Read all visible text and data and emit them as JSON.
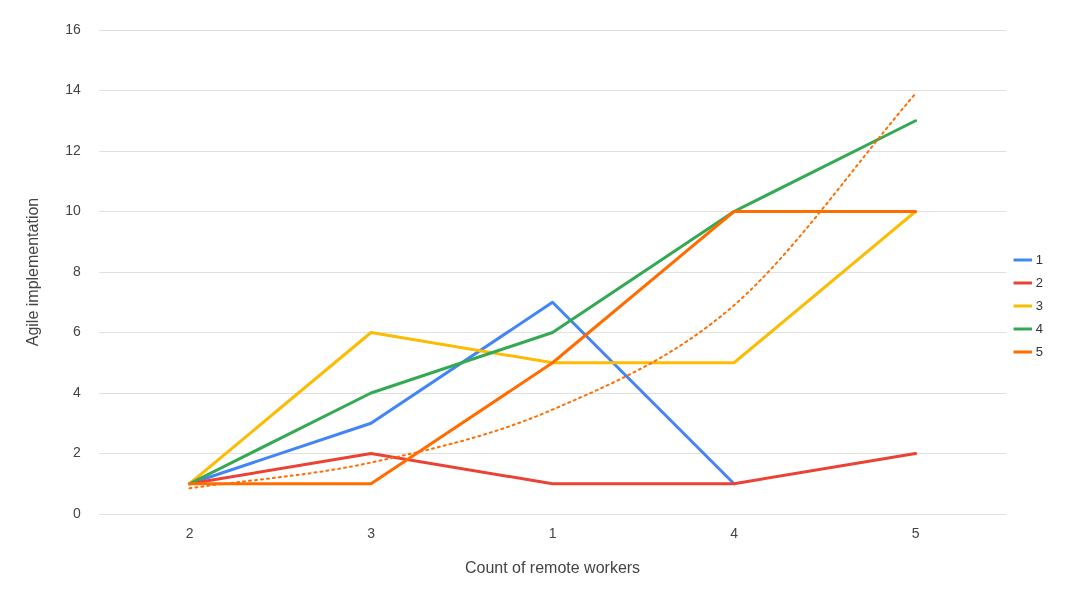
{
  "chart_data": {
    "type": "line",
    "xlabel": "Count of remote workers",
    "ylabel": "Agile implementation",
    "categories": [
      "2",
      "3",
      "1",
      "4",
      "5"
    ],
    "series": [
      {
        "name": "1",
        "color": "#4285f4",
        "values": [
          1,
          3,
          7,
          1,
          null
        ]
      },
      {
        "name": "2",
        "color": "#ea4335",
        "values": [
          1,
          2,
          1,
          1,
          2
        ]
      },
      {
        "name": "3",
        "color": "#fbbc04",
        "values": [
          1,
          6,
          5,
          5,
          10
        ]
      },
      {
        "name": "4",
        "color": "#34a853",
        "values": [
          1,
          4,
          6,
          10,
          13
        ]
      },
      {
        "name": "5",
        "color": "#ff6d01",
        "values": [
          1,
          1,
          5,
          10,
          10
        ]
      },
      {
        "type": "line",
        "color": "#ff6d01",
        "line_style": "dotted",
        "values": [
          0.85,
          1.7,
          3.45,
          6.9,
          13.9
        ]
      }
    ],
    "ylim": [
      0,
      16
    ],
    "yticks": [
      0,
      2,
      4,
      6,
      8,
      10,
      12,
      14,
      16
    ],
    "grid": "y",
    "legend": "right",
    "marker": "none",
    "line_style": "solid"
  }
}
